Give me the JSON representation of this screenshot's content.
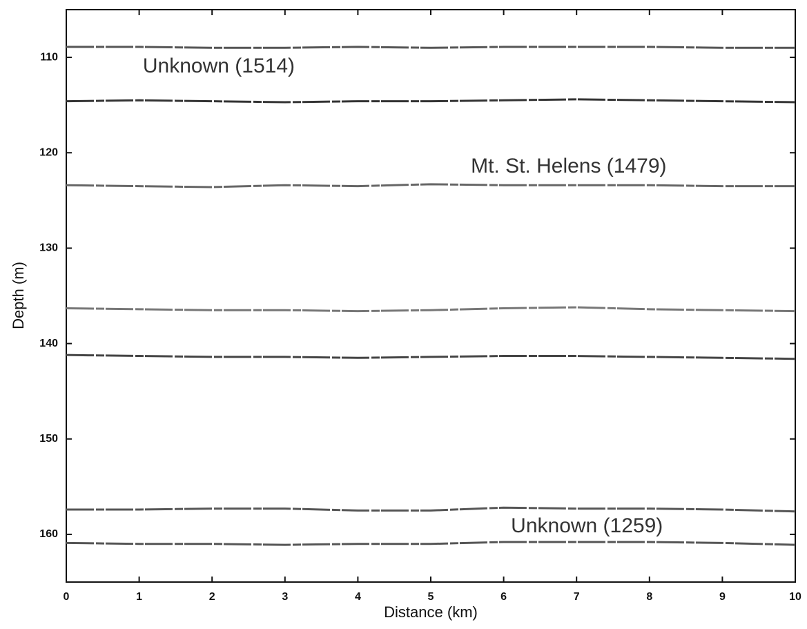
{
  "chart_data": {
    "type": "line",
    "x_label": "Distance (km)",
    "y_label": "Depth (m)",
    "x": [
      0,
      1,
      2,
      3,
      4,
      5,
      6,
      7,
      8,
      9,
      10
    ],
    "series": [
      {
        "color": "#555555",
        "values": [
          108.9,
          108.9,
          109.0,
          109.0,
          108.9,
          109.0,
          108.9,
          108.9,
          108.9,
          109.0,
          109.0
        ]
      },
      {
        "color": "#333333",
        "values": [
          114.6,
          114.5,
          114.6,
          114.7,
          114.6,
          114.6,
          114.5,
          114.4,
          114.5,
          114.6,
          114.7
        ]
      },
      {
        "color": "#666666",
        "values": [
          123.4,
          123.5,
          123.6,
          123.4,
          123.5,
          123.3,
          123.4,
          123.4,
          123.4,
          123.5,
          123.5
        ]
      },
      {
        "color": "#777777",
        "values": [
          136.3,
          136.4,
          136.5,
          136.5,
          136.6,
          136.5,
          136.3,
          136.2,
          136.4,
          136.5,
          136.6
        ]
      },
      {
        "color": "#444444",
        "values": [
          141.2,
          141.3,
          141.4,
          141.4,
          141.5,
          141.4,
          141.3,
          141.3,
          141.4,
          141.5,
          141.6
        ]
      },
      {
        "color": "#555555",
        "values": [
          157.4,
          157.4,
          157.3,
          157.3,
          157.5,
          157.5,
          157.2,
          157.3,
          157.3,
          157.4,
          157.6
        ]
      },
      {
        "color": "#555555",
        "values": [
          160.9,
          161.0,
          161.0,
          161.1,
          161.0,
          161.0,
          160.8,
          160.8,
          160.8,
          160.9,
          161.1
        ]
      }
    ],
    "annotations": [
      {
        "text": "Unknown (1514)",
        "x": 1.05,
        "y": 111
      },
      {
        "text": "Mt. St. Helens (1479)",
        "x": 5.55,
        "y": 121.5
      },
      {
        "text": "Unknown (1259)",
        "x": 6.1,
        "y": 159.2
      }
    ],
    "xlim": [
      0,
      10
    ],
    "xticks": [
      0,
      1,
      2,
      3,
      4,
      5,
      6,
      7,
      8,
      9,
      10
    ],
    "ylim": [
      105,
      165
    ],
    "yticks": [
      110,
      120,
      130,
      140,
      150,
      160
    ],
    "y_inverted": true,
    "grid": false
  }
}
